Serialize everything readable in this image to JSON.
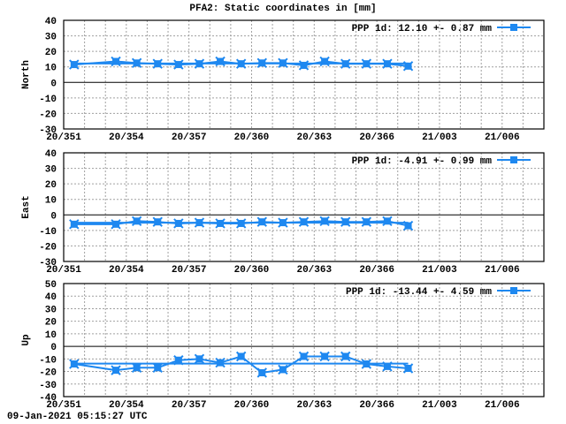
{
  "title": "PFA2: Static coordinates in [mm]",
  "timestamp": "09-Jan-2021 05:15:27 UTC",
  "colors": {
    "series": "#1e88f0",
    "grid": "#a0a0a0",
    "axis": "#000000",
    "background": "#ffffff"
  },
  "x_tick_labels": [
    "20/351",
    "20/354",
    "20/357",
    "20/360",
    "20/363",
    "20/366",
    "21/003",
    "21/006"
  ],
  "chart_data": [
    {
      "type": "line",
      "title": "PFA2: Static coordinates in [mm]",
      "ylabel": "North",
      "xlabel": "",
      "ylim": [
        -30,
        40
      ],
      "yticks": [
        40,
        30,
        20,
        10,
        0,
        -10,
        -20,
        -30
      ],
      "x_tick_labels": [
        "20/351",
        "20/354",
        "20/357",
        "20/360",
        "20/363",
        "20/366",
        "21/003",
        "21/006"
      ],
      "legend": {
        "label": "PPP 1d:",
        "value": "12.10",
        "pm": "+-",
        "sigma": "0.87",
        "unit": "mm",
        "text": "PPP 1d:  12.10 +-  0.87 mm",
        "position": "top-right"
      },
      "grid": true,
      "x_day_index": [
        0.5,
        2.5,
        3.5,
        4.5,
        5.5,
        6.5,
        7.5,
        8.5,
        9.5,
        10.5,
        11.5,
        12.5,
        13.5,
        14.5,
        15.5,
        16.5
      ],
      "values": [
        11.5,
        13.5,
        12.5,
        12,
        11.5,
        12,
        13.5,
        12,
        12.5,
        12.5,
        11,
        13.5,
        12,
        12,
        12,
        10.5
      ],
      "series": [
        {
          "name": "PPP 1d",
          "values": [
            11.5,
            13.5,
            12.5,
            12,
            11.5,
            12,
            13.5,
            12,
            12.5,
            12.5,
            11,
            13.5,
            12,
            12,
            12,
            10.5
          ]
        }
      ]
    },
    {
      "type": "line",
      "ylabel": "East",
      "xlabel": "",
      "ylim": [
        -30,
        40
      ],
      "yticks": [
        40,
        30,
        20,
        10,
        0,
        -10,
        -20,
        -30
      ],
      "x_tick_labels": [
        "20/351",
        "20/354",
        "20/357",
        "20/360",
        "20/363",
        "20/366",
        "21/003",
        "21/006"
      ],
      "legend": {
        "label": "PPP 1d:",
        "value": "-4.91",
        "pm": "+-",
        "sigma": "0.99",
        "unit": "mm",
        "text": "PPP 1d:  -4.91 +-  0.99 mm",
        "position": "top-right"
      },
      "grid": true,
      "x_day_index": [
        0.5,
        2.5,
        3.5,
        4.5,
        5.5,
        6.5,
        7.5,
        8.5,
        9.5,
        10.5,
        11.5,
        12.5,
        13.5,
        14.5,
        15.5,
        16.5
      ],
      "values": [
        -6,
        -6,
        -4,
        -4.5,
        -5.5,
        -5,
        -5.5,
        -5.5,
        -4.5,
        -5,
        -4.5,
        -4,
        -4.5,
        -4.5,
        -4,
        -7
      ],
      "series": [
        {
          "name": "PPP 1d",
          "values": [
            -6,
            -6,
            -4,
            -4.5,
            -5.5,
            -5,
            -5.5,
            -5.5,
            -4.5,
            -5,
            -4.5,
            -4,
            -4.5,
            -4.5,
            -4,
            -7
          ]
        }
      ]
    },
    {
      "type": "line",
      "ylabel": "Up",
      "xlabel": "",
      "ylim": [
        -40,
        50
      ],
      "yticks": [
        50,
        40,
        30,
        20,
        10,
        0,
        -10,
        -20,
        -30,
        -40
      ],
      "x_tick_labels": [
        "20/351",
        "20/354",
        "20/357",
        "20/360",
        "20/363",
        "20/366",
        "21/003",
        "21/006"
      ],
      "legend": {
        "label": "PPP 1d:",
        "value": "-13.44",
        "pm": "+-",
        "sigma": "4.59",
        "unit": "mm",
        "text": "PPP 1d: -13.44 +-  4.59 mm",
        "position": "top-right"
      },
      "grid": true,
      "x_day_index": [
        0.5,
        2.5,
        3.5,
        4.5,
        5.5,
        6.5,
        7.5,
        8.5,
        9.5,
        10.5,
        11.5,
        12.5,
        13.5,
        14.5,
        15.5,
        16.5
      ],
      "values": [
        -14,
        -19,
        -17,
        -17,
        -11,
        -10,
        -13,
        -8,
        -21,
        -18.5,
        -8,
        -8,
        -8,
        -14,
        -16,
        -17.5
      ],
      "series": [
        {
          "name": "PPP 1d",
          "values": [
            -14,
            -19,
            -17,
            -17,
            -11,
            -10,
            -13,
            -8,
            -21,
            -18.5,
            -8,
            -8,
            -8,
            -14,
            -16,
            -17.5
          ]
        }
      ]
    }
  ]
}
